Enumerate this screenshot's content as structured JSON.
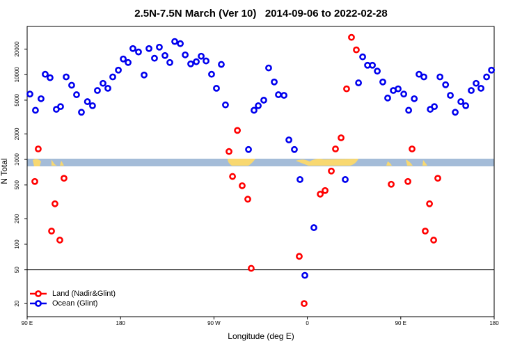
{
  "chart_data": {
    "type": "scatter",
    "title": "2.5N-7.5N March (Ver 10)   2014-09-06 to 2022-02-28",
    "xlabel": "Longitude (deg E)",
    "ylabel": "N Total",
    "log_y": true,
    "legend": "lower left",
    "xlim": [
      90,
      540
    ],
    "xticks": [
      {
        "value": 90,
        "label": "90 E"
      },
      180,
      {
        "value": 270,
        "label": "90 W"
      },
      {
        "value": 360,
        "label": "0"
      },
      {
        "value": 450,
        "label": "90 E"
      },
      {
        "value": 540,
        "label": "180"
      }
    ],
    "ylim": [
      14,
      37000
    ],
    "yticks": [
      20,
      50,
      100,
      200,
      500,
      1000,
      2000,
      5000,
      10000,
      20000
    ],
    "reference_line": 50,
    "series": [
      {
        "name": "Land (Nadir&Glint)",
        "color": "#ff0000",
        "x": [
          100.7,
          97.4,
          113.5,
          116.8,
          121.5,
          125.5,
          284.5,
          287.9,
          292.6,
          297.2,
          302.6,
          305.9,
          352.2,
          356.9,
          372.4,
          377.1,
          383.1,
          387.1,
          392.5,
          397.8,
          402.5,
          407.2,
          440.8,
          456.9,
          460.9,
          473.6,
          477.7,
          481.7,
          485.7
        ],
        "values": [
          1330,
          550,
          143,
          300,
          112,
          600,
          1240,
          630,
          2200,
          490,
          340,
          52,
          72,
          20,
          390,
          430,
          730,
          1330,
          1800,
          6800,
          27500,
          19600,
          510,
          550,
          1330,
          143,
          300,
          112,
          600
        ]
      },
      {
        "name": "Ocean (Glint)",
        "color": "#0000ee",
        "x": [
          92.7,
          98.0,
          103.4,
          107.4,
          112.1,
          118.1,
          122.2,
          127.6,
          132.9,
          137.6,
          142.3,
          148.1,
          153.0,
          157.7,
          163.1,
          167.8,
          172.5,
          177.9,
          182.6,
          187.3,
          191.9,
          197.3,
          202.7,
          207.4,
          212.7,
          217.4,
          222.8,
          227.5,
          232.2,
          237.6,
          242.3,
          247.6,
          253.0,
          257.7,
          262.4,
          267.7,
          272.4,
          277.1,
          281.1,
          303.3,
          308.6,
          312.7,
          318.0,
          322.7,
          328.1,
          332.1,
          337.5,
          342.2,
          347.5,
          352.9,
          357.6,
          366.3,
          396.5,
          409.3,
          413.3,
          418.0,
          422.7,
          427.4,
          432.7,
          437.4,
          442.8,
          447.5,
          452.9,
          457.6,
          463.0,
          467.6,
          472.3,
          478.4,
          482.4,
          487.8,
          493.2,
          497.8,
          502.5,
          507.9,
          512.6,
          517.9,
          522.6,
          527.3,
          532.7,
          537.4
        ],
        "values": [
          5900,
          3800,
          5200,
          10100,
          9200,
          3900,
          4200,
          9400,
          7500,
          5800,
          3600,
          4800,
          4300,
          6500,
          7900,
          6900,
          9400,
          11300,
          15300,
          13900,
          20300,
          18500,
          9900,
          20300,
          15600,
          21100,
          16800,
          13900,
          24600,
          23200,
          17100,
          13400,
          14200,
          16500,
          14500,
          10100,
          6900,
          13200,
          4400,
          1310,
          3800,
          4300,
          5000,
          12000,
          8200,
          5800,
          5700,
          1700,
          1310,
          580,
          43,
          157,
          580,
          8000,
          16200,
          12900,
          12900,
          11000,
          8200,
          5300,
          6500,
          6800,
          5900,
          3800,
          5200,
          10100,
          9400,
          3900,
          4200,
          9400,
          7600,
          5700,
          3600,
          4800,
          4300,
          6500,
          7900,
          6900,
          9400,
          11300
        ]
      }
    ]
  }
}
